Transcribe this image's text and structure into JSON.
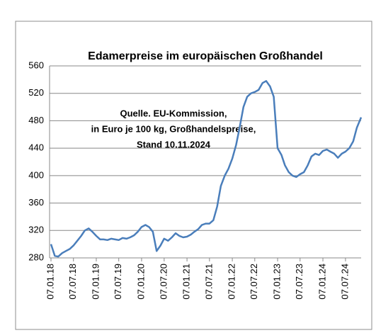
{
  "chart_data": {
    "type": "line",
    "title": "Edamerpreise im europäischen Großhandel",
    "annotation": [
      "Quelle. EU-Kommission,",
      "in Euro je 100 kg, Großhandelspreise,",
      "Stand 10.11.2024"
    ],
    "color": "#4a7ebb",
    "grid": true,
    "x": [
      "07.01.18",
      "07.02.18",
      "07.03.18",
      "07.04.18",
      "07.05.18",
      "07.06.18",
      "07.07.18",
      "07.08.18",
      "07.09.18",
      "07.10.18",
      "07.11.18",
      "07.12.18",
      "07.01.19",
      "07.02.19",
      "07.03.19",
      "07.04.19",
      "07.05.19",
      "07.06.19",
      "07.07.19",
      "07.08.19",
      "07.09.19",
      "07.10.19",
      "07.11.19",
      "07.12.19",
      "07.01.20",
      "07.02.20",
      "07.03.20",
      "07.04.20",
      "07.05.20",
      "07.06.20",
      "07.07.20",
      "07.08.20",
      "07.09.20",
      "07.10.20",
      "07.11.20",
      "07.12.20",
      "07.01.21",
      "07.02.21",
      "07.03.21",
      "07.04.21",
      "07.05.21",
      "07.06.21",
      "07.07.21",
      "07.08.21",
      "07.09.21",
      "07.10.21",
      "07.11.21",
      "07.12.21",
      "07.01.22",
      "07.02.22",
      "07.03.22",
      "07.04.22",
      "07.05.22",
      "07.06.22",
      "07.07.22",
      "07.08.22",
      "07.09.22",
      "07.10.22",
      "07.11.22",
      "07.12.22",
      "07.01.23",
      "07.02.23",
      "07.03.23",
      "07.04.23",
      "07.05.23",
      "07.06.23",
      "07.07.23",
      "07.08.23",
      "07.09.23",
      "07.10.23",
      "07.11.23",
      "07.12.23",
      "07.01.24",
      "07.02.24",
      "07.03.24",
      "07.04.24",
      "07.05.24",
      "07.06.24",
      "07.07.24",
      "07.08.24",
      "07.09.24",
      "07.10.24",
      "10.11.24"
    ],
    "values": [
      300,
      283,
      282,
      287,
      290,
      293,
      298,
      305,
      312,
      320,
      323,
      318,
      312,
      307,
      307,
      306,
      308,
      307,
      306,
      309,
      308,
      310,
      313,
      318,
      325,
      328,
      325,
      318,
      290,
      298,
      308,
      305,
      310,
      316,
      312,
      310,
      311,
      314,
      318,
      322,
      328,
      330,
      330,
      335,
      355,
      385,
      400,
      410,
      425,
      445,
      470,
      500,
      515,
      520,
      522,
      525,
      535,
      538,
      530,
      515,
      440,
      430,
      415,
      405,
      400,
      398,
      402,
      405,
      415,
      428,
      432,
      430,
      436,
      438,
      435,
      432,
      426,
      432,
      435,
      440,
      450,
      470,
      485
    ],
    "xlim": [
      "07.01.18",
      "10.11.24"
    ],
    "xticks": [
      "07.01.18",
      "07.07.18",
      "07.01.19",
      "07.07.19",
      "07.01.20",
      "07.07.20",
      "07.01.21",
      "07.07.21",
      "07.01.22",
      "07.07.22",
      "07.01.23",
      "07.07.23",
      "07.01.24",
      "07.07.24"
    ],
    "ylim": [
      280,
      560
    ],
    "yticks": [
      280,
      320,
      360,
      400,
      440,
      480,
      520,
      560
    ]
  }
}
